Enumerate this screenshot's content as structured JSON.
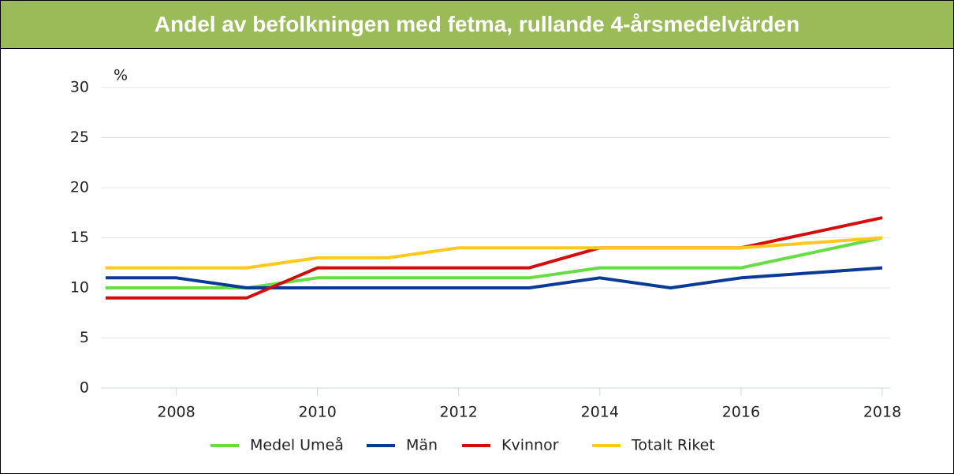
{
  "chart_data": {
    "type": "line",
    "title": "Andel av befolkningen med fetma, rullande 4-årsmedelvärden",
    "y_label": "%",
    "x": [
      2007,
      2008,
      2009,
      2010,
      2011,
      2012,
      2013,
      2014,
      2015,
      2016,
      2017,
      2018
    ],
    "series": [
      {
        "name": "Medel Umeå",
        "color": "#66dd44",
        "values": [
          10,
          10,
          10,
          11,
          11,
          11,
          11,
          12,
          12,
          12,
          13.5,
          15
        ]
      },
      {
        "name": "Män",
        "color": "#0a3a96",
        "values": [
          11,
          11,
          10,
          10,
          10,
          10,
          10,
          11,
          10,
          11,
          11.5,
          12
        ]
      },
      {
        "name": "Kvinnor",
        "color": "#d40c0c",
        "values": [
          9,
          9,
          9,
          12,
          12,
          12,
          12,
          14,
          14,
          14,
          15.5,
          17
        ]
      },
      {
        "name": "Totalt Riket",
        "color": "#ffc81e",
        "values": [
          12,
          12,
          12,
          13,
          13,
          14,
          14,
          14,
          14,
          14,
          14.5,
          15
        ]
      }
    ],
    "xlim": [
      2007,
      2018
    ],
    "xticks": [
      2008,
      2010,
      2012,
      2014,
      2016,
      2018
    ],
    "ylim": [
      0,
      30
    ],
    "yticks": [
      0,
      5,
      10,
      15,
      20,
      25,
      30
    ],
    "grid": true,
    "legend": "bottom"
  }
}
